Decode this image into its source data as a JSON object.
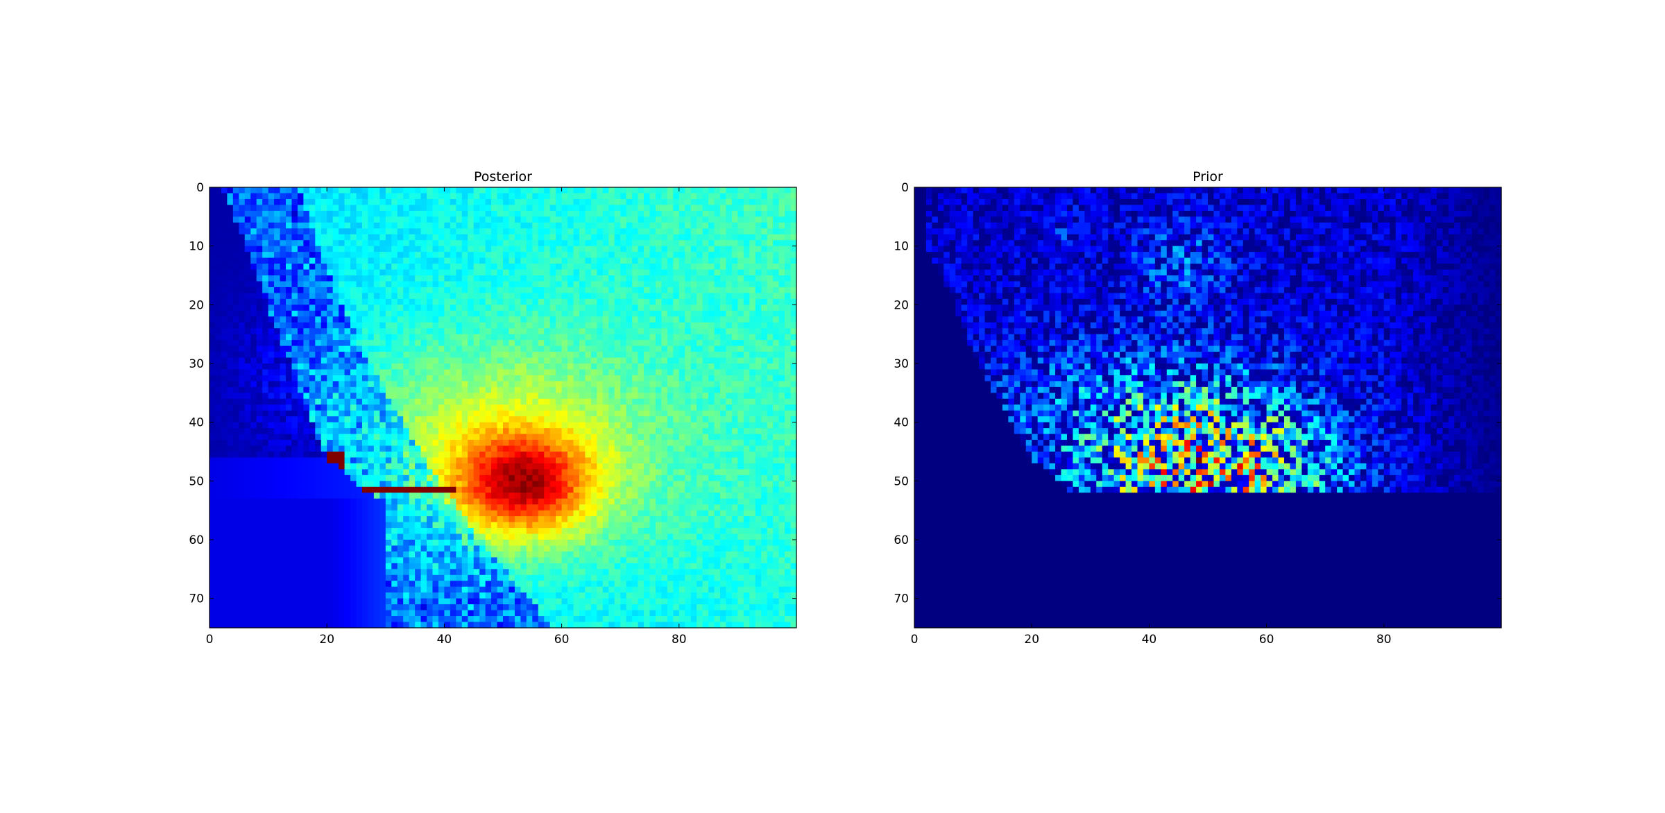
{
  "chart_data": [
    {
      "type": "heatmap",
      "title": "Posterior",
      "xlabel": "",
      "ylabel": "",
      "xlim": [
        0,
        99
      ],
      "ylim": [
        75,
        0
      ],
      "xticks": [
        "0",
        "20",
        "40",
        "60",
        "80"
      ],
      "yticks": [
        "0",
        "10",
        "20",
        "30",
        "40",
        "50",
        "60",
        "70"
      ],
      "colormap": "jet",
      "grid": false,
      "legend": "none"
    },
    {
      "type": "heatmap",
      "title": "Prior",
      "xlabel": "",
      "ylabel": "",
      "xlim": [
        0,
        99
      ],
      "ylim": [
        75,
        0
      ],
      "xticks": [
        "0",
        "20",
        "40",
        "60",
        "80"
      ],
      "yticks": [
        "0",
        "10",
        "20",
        "30",
        "40",
        "50",
        "60",
        "70"
      ],
      "colormap": "jet",
      "grid": false,
      "legend": "none"
    }
  ]
}
